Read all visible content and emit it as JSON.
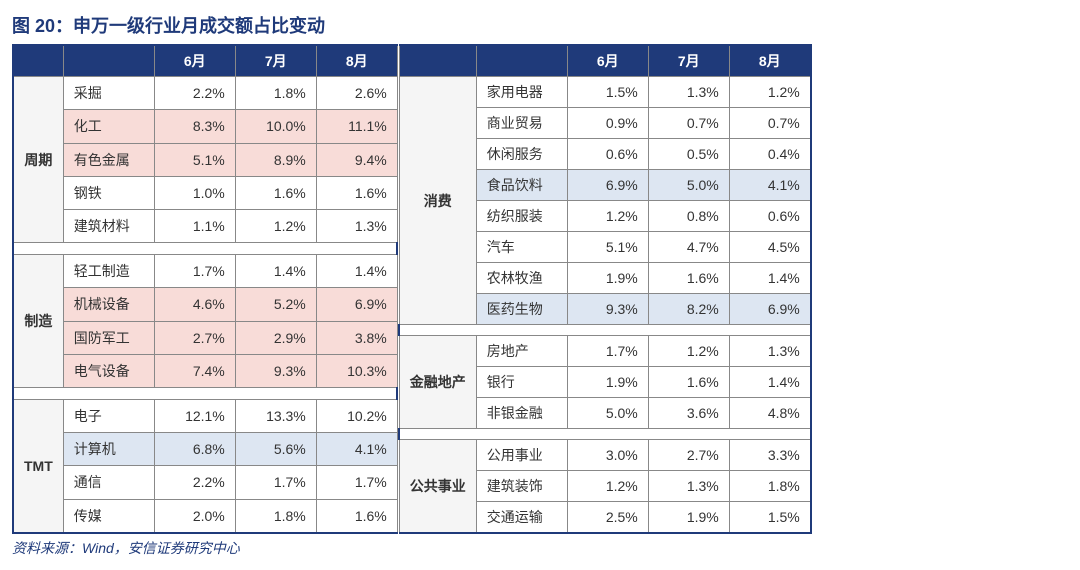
{
  "title": "图 20：申万一级行业月成交额占比变动",
  "months": [
    "6月",
    "7月",
    "8月"
  ],
  "source": "资料来源：Wind，安信证券研究中心",
  "left": [
    {
      "cat": "周期",
      "rows": [
        {
          "label": "采掘",
          "vals": [
            "2.2%",
            "1.8%",
            "2.6%"
          ],
          "hl": ""
        },
        {
          "label": "化工",
          "vals": [
            "8.3%",
            "10.0%",
            "11.1%"
          ],
          "hl": "pink"
        },
        {
          "label": "有色金属",
          "vals": [
            "5.1%",
            "8.9%",
            "9.4%"
          ],
          "hl": "pink"
        },
        {
          "label": "钢铁",
          "vals": [
            "1.0%",
            "1.6%",
            "1.6%"
          ],
          "hl": ""
        },
        {
          "label": "建筑材料",
          "vals": [
            "1.1%",
            "1.2%",
            "1.3%"
          ],
          "hl": ""
        }
      ]
    },
    {
      "cat": "制造",
      "rows": [
        {
          "label": "轻工制造",
          "vals": [
            "1.7%",
            "1.4%",
            "1.4%"
          ],
          "hl": ""
        },
        {
          "label": "机械设备",
          "vals": [
            "4.6%",
            "5.2%",
            "6.9%"
          ],
          "hl": "pink"
        },
        {
          "label": "国防军工",
          "vals": [
            "2.7%",
            "2.9%",
            "3.8%"
          ],
          "hl": "pink"
        },
        {
          "label": "电气设备",
          "vals": [
            "7.4%",
            "9.3%",
            "10.3%"
          ],
          "hl": "pink"
        }
      ]
    },
    {
      "cat": "TMT",
      "rows": [
        {
          "label": "电子",
          "vals": [
            "12.1%",
            "13.3%",
            "10.2%"
          ],
          "hl": ""
        },
        {
          "label": "计算机",
          "vals": [
            "6.8%",
            "5.6%",
            "4.1%"
          ],
          "hl": "blue"
        },
        {
          "label": "通信",
          "vals": [
            "2.2%",
            "1.7%",
            "1.7%"
          ],
          "hl": ""
        },
        {
          "label": "传媒",
          "vals": [
            "2.0%",
            "1.8%",
            "1.6%"
          ],
          "hl": ""
        }
      ]
    }
  ],
  "right": [
    {
      "cat": "消费",
      "rows": [
        {
          "label": "家用电器",
          "vals": [
            "1.5%",
            "1.3%",
            "1.2%"
          ],
          "hl": ""
        },
        {
          "label": "商业贸易",
          "vals": [
            "0.9%",
            "0.7%",
            "0.7%"
          ],
          "hl": ""
        },
        {
          "label": "休闲服务",
          "vals": [
            "0.6%",
            "0.5%",
            "0.4%"
          ],
          "hl": ""
        },
        {
          "label": "食品饮料",
          "vals": [
            "6.9%",
            "5.0%",
            "4.1%"
          ],
          "hl": "blue"
        },
        {
          "label": "纺织服装",
          "vals": [
            "1.2%",
            "0.8%",
            "0.6%"
          ],
          "hl": ""
        },
        {
          "label": "汽车",
          "vals": [
            "5.1%",
            "4.7%",
            "4.5%"
          ],
          "hl": ""
        },
        {
          "label": "农林牧渔",
          "vals": [
            "1.9%",
            "1.6%",
            "1.4%"
          ],
          "hl": ""
        },
        {
          "label": "医药生物",
          "vals": [
            "9.3%",
            "8.2%",
            "6.9%"
          ],
          "hl": "blue"
        }
      ]
    },
    {
      "cat": "金融地产",
      "rows": [
        {
          "label": "房地产",
          "vals": [
            "1.7%",
            "1.2%",
            "1.3%"
          ],
          "hl": ""
        },
        {
          "label": "银行",
          "vals": [
            "1.9%",
            "1.6%",
            "1.4%"
          ],
          "hl": ""
        },
        {
          "label": "非银金融",
          "vals": [
            "5.0%",
            "3.6%",
            "4.8%"
          ],
          "hl": ""
        }
      ]
    },
    {
      "cat": "公共事业",
      "rows": [
        {
          "label": "公用事业",
          "vals": [
            "3.0%",
            "2.7%",
            "3.3%"
          ],
          "hl": ""
        },
        {
          "label": "建筑装饰",
          "vals": [
            "1.2%",
            "1.3%",
            "1.8%"
          ],
          "hl": ""
        },
        {
          "label": "交通运输",
          "vals": [
            "2.5%",
            "1.9%",
            "1.5%"
          ],
          "hl": ""
        }
      ]
    }
  ]
}
